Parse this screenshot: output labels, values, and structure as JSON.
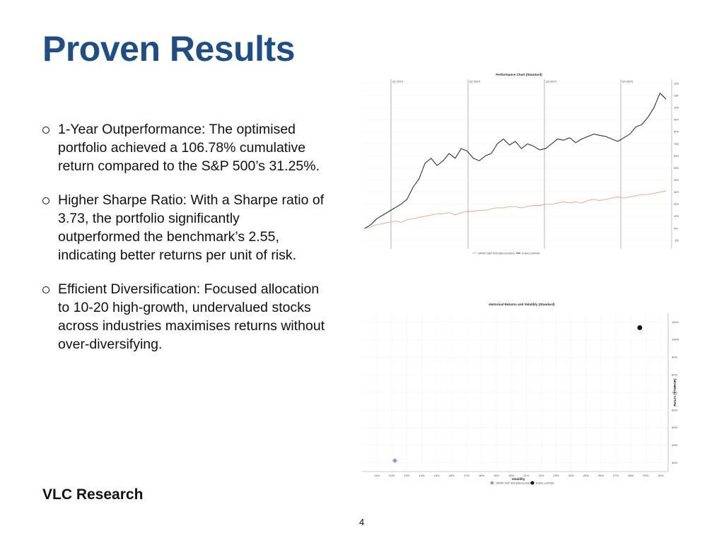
{
  "slide": {
    "title": "Proven Results",
    "footer": "VLC Research",
    "page_number": "4"
  },
  "bullets": [
    {
      "text": "1-Year Outperformance: The optimised portfolio achieved a 106.78% cumulative return compared to the S&P 500’s 31.25%."
    },
    {
      "text": "Higher Sharpe Ratio: With a Sharpe ratio of 3.73, the portfolio significantly outperformed the benchmark’s 2.55, indicating better returns per unit of risk."
    },
    {
      "text": "Efficient Diversification: Focused allocation to 10-20 high-growth, undervalued stocks across industries maximises returns without over-diversifying."
    }
  ],
  "colors": {
    "title": "#1f4e85",
    "portfolio": "#333333",
    "benchmark_line": "#e8a48c",
    "benchmark_marker": "#b57bd6",
    "quarter_lines": "#c8c8c8"
  },
  "chart_data": [
    {
      "type": "line",
      "title": "Performance Chart (Standard)",
      "quarter_labels": [
        "Q1 2024",
        "Q2 2024",
        "Q3 2024",
        "Q4 2024"
      ],
      "y_ticks": [
        "120%",
        "110%",
        "100%",
        "90%",
        "80%",
        "70%",
        "60%",
        "50%",
        "40%",
        "30%",
        "20%",
        "10%",
        "0%",
        "-10%"
      ],
      "ylim": [
        -10,
        120
      ],
      "legend_position": "bottom",
      "series": [
        {
          "name": "SPDR S&P 500 (Benchmark)",
          "values": [
            0,
            1,
            3,
            4,
            5,
            6,
            5,
            7,
            8,
            9,
            10,
            11,
            12,
            12,
            13,
            11,
            13,
            14,
            14,
            15,
            15,
            16,
            17,
            17,
            18,
            18,
            17,
            18,
            19,
            19,
            20,
            20,
            21,
            22,
            21,
            22,
            21,
            23,
            24,
            23,
            24,
            25,
            26,
            25,
            26,
            27,
            28,
            28,
            29,
            30,
            31
          ]
        },
        {
          "name": "Entire portfolio",
          "values": [
            0,
            3,
            8,
            11,
            14,
            17,
            20,
            24,
            34,
            41,
            54,
            58,
            52,
            56,
            62,
            58,
            66,
            64,
            58,
            56,
            60,
            62,
            70,
            74,
            69,
            72,
            66,
            70,
            68,
            65,
            66,
            70,
            74,
            73,
            75,
            71,
            74,
            76,
            78,
            77,
            76,
            74,
            72,
            75,
            78,
            84,
            86,
            92,
            100,
            112,
            107
          ]
        }
      ]
    },
    {
      "type": "scatter",
      "title": "Historical Returns and Volatility (Standard)",
      "xlabel": "Volatility",
      "ylabel": "Return (TTWROR)",
      "x_ticks": [
        "11%",
        "12%",
        "13%",
        "14%",
        "15%",
        "16%",
        "17%",
        "18%",
        "19%",
        "20%",
        "21%",
        "22%",
        "23%",
        "24%",
        "25%",
        "26%",
        "27%",
        "28%",
        "29%",
        "30%"
      ],
      "y_ticks": [
        "110%",
        "100%",
        "90%",
        "80%",
        "70%",
        "60%",
        "50%",
        "40%",
        "30%"
      ],
      "xlim": [
        10,
        30.5
      ],
      "ylim": [
        25,
        115
      ],
      "legend_position": "bottom",
      "series": [
        {
          "name": "SPDR S&P 500 (Benchmark)",
          "marker": "diamond",
          "x": [
            12.2
          ],
          "y": [
            31.25
          ]
        },
        {
          "name": "Entire portfolio",
          "marker": "circle",
          "x": [
            28.6
          ],
          "y": [
            106.78
          ]
        }
      ]
    }
  ]
}
